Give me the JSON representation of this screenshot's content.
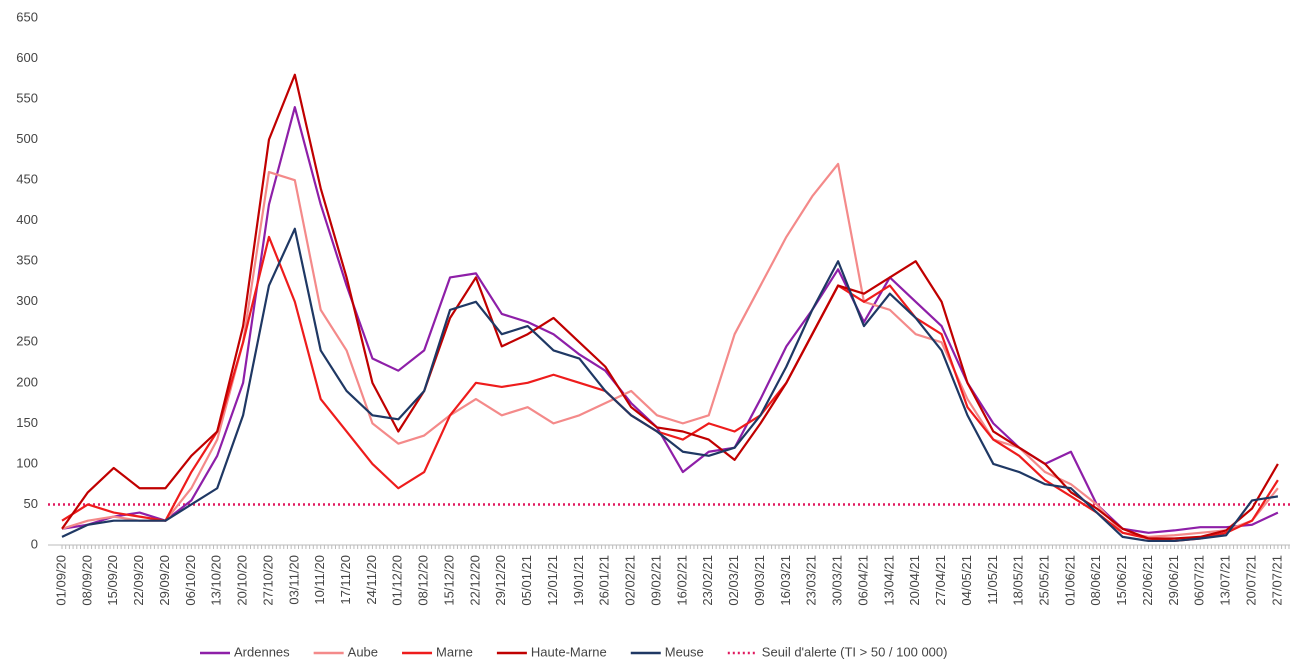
{
  "chart_data": {
    "type": "line",
    "categories": [
      "01/09/20",
      "08/09/20",
      "15/09/20",
      "22/09/20",
      "29/09/20",
      "06/10/20",
      "13/10/20",
      "20/10/20",
      "27/10/20",
      "03/11/20",
      "10/11/20",
      "17/11/20",
      "24/11/20",
      "01/12/20",
      "08/12/20",
      "15/12/20",
      "22/12/20",
      "29/12/20",
      "05/01/21",
      "12/01/21",
      "19/01/21",
      "26/01/21",
      "02/02/21",
      "09/02/21",
      "16/02/21",
      "23/02/21",
      "02/03/21",
      "09/03/21",
      "16/03/21",
      "23/03/21",
      "30/03/21",
      "06/04/21",
      "13/04/21",
      "20/04/21",
      "27/04/21",
      "04/05/21",
      "11/05/21",
      "18/05/21",
      "25/05/21",
      "01/06/21",
      "08/06/21",
      "15/06/21",
      "22/06/21",
      "29/06/21",
      "06/07/21",
      "13/07/21",
      "20/07/21",
      "27/07/21"
    ],
    "series": [
      {
        "name": "Ardennes",
        "color": "#8e1fa8",
        "values": [
          20,
          25,
          35,
          40,
          30,
          55,
          110,
          200,
          420,
          540,
          420,
          320,
          230,
          215,
          240,
          330,
          335,
          285,
          275,
          260,
          235,
          215,
          175,
          145,
          90,
          115,
          120,
          180,
          245,
          290,
          340,
          275,
          330,
          300,
          270,
          200,
          150,
          120,
          100,
          115,
          50,
          20,
          15,
          18,
          22,
          22,
          25,
          40
        ]
      },
      {
        "name": "Aube",
        "color": "#f48a8a",
        "values": [
          20,
          30,
          35,
          30,
          30,
          70,
          130,
          250,
          460,
          450,
          290,
          240,
          150,
          125,
          135,
          160,
          180,
          160,
          170,
          150,
          160,
          175,
          190,
          160,
          150,
          160,
          260,
          320,
          380,
          430,
          470,
          300,
          290,
          260,
          250,
          180,
          130,
          120,
          90,
          75,
          50,
          15,
          10,
          12,
          15,
          18,
          30,
          70
        ]
      },
      {
        "name": "Marne",
        "color": "#ee1c1c",
        "values": [
          30,
          50,
          40,
          35,
          30,
          90,
          140,
          250,
          380,
          300,
          180,
          140,
          100,
          70,
          90,
          160,
          200,
          195,
          200,
          210,
          200,
          190,
          160,
          140,
          130,
          150,
          140,
          160,
          200,
          260,
          320,
          300,
          320,
          280,
          260,
          170,
          130,
          110,
          80,
          60,
          40,
          15,
          8,
          5,
          8,
          15,
          30,
          80
        ]
      },
      {
        "name": "Haute-Marne",
        "color": "#c00000",
        "values": [
          20,
          65,
          95,
          70,
          70,
          110,
          140,
          270,
          500,
          580,
          440,
          330,
          200,
          140,
          190,
          280,
          330,
          245,
          260,
          280,
          250,
          220,
          170,
          145,
          140,
          130,
          105,
          150,
          200,
          260,
          320,
          310,
          330,
          350,
          300,
          200,
          140,
          120,
          100,
          65,
          45,
          20,
          8,
          8,
          10,
          18,
          45,
          100
        ]
      },
      {
        "name": "Meuse",
        "color": "#1f3864",
        "values": [
          10,
          25,
          30,
          30,
          30,
          50,
          70,
          160,
          320,
          390,
          240,
          190,
          160,
          155,
          190,
          290,
          300,
          260,
          270,
          240,
          230,
          190,
          160,
          140,
          115,
          110,
          120,
          160,
          220,
          290,
          350,
          270,
          310,
          280,
          240,
          160,
          100,
          90,
          75,
          70,
          40,
          10,
          5,
          5,
          8,
          12,
          55,
          60
        ]
      }
    ],
    "threshold": {
      "name": "Seuil d'alerte (TI > 50 / 100 000)",
      "value": 50,
      "color": "#e0195f"
    },
    "ylim": [
      0,
      650
    ],
    "yticks": [
      0,
      50,
      100,
      150,
      200,
      250,
      300,
      350,
      400,
      450,
      500,
      550,
      600,
      650
    ],
    "legend": "bottom"
  }
}
